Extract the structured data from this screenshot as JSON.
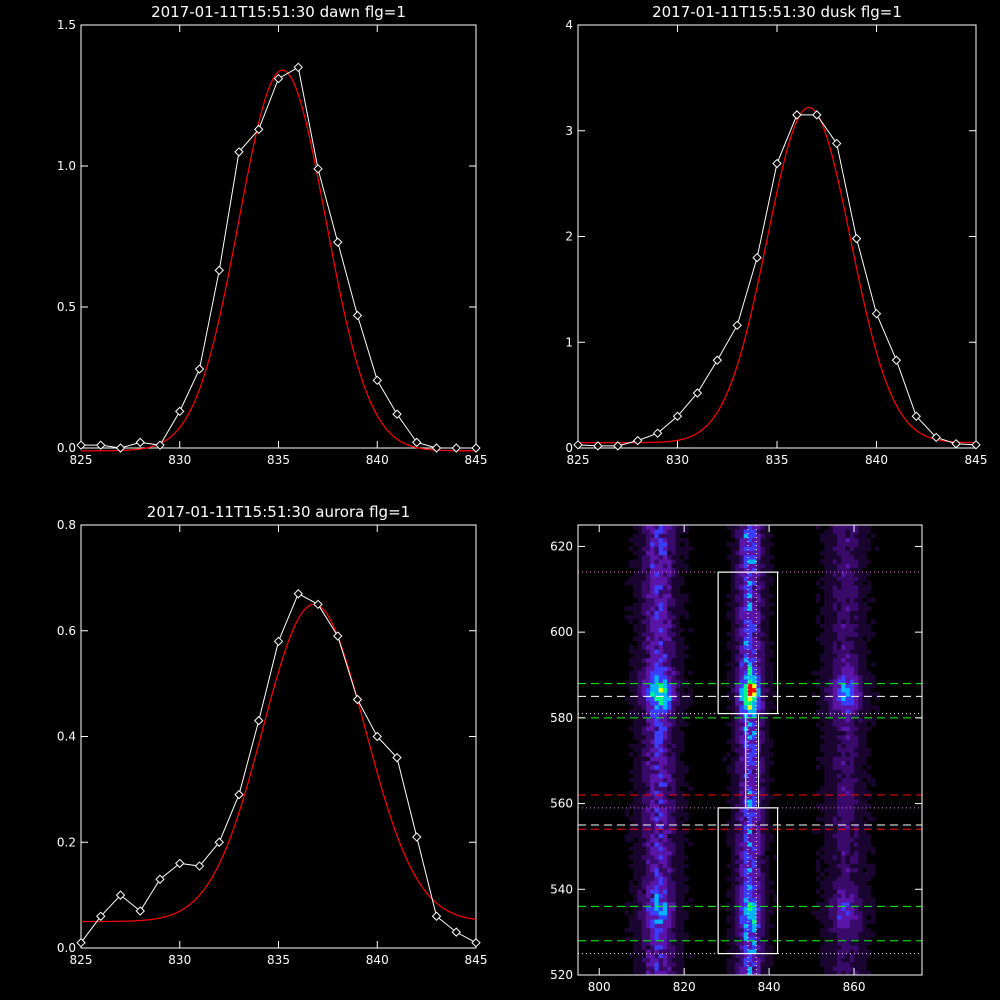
{
  "chart_data": [
    {
      "type": "line",
      "title": "2017-01-11T15:51:30 dawn flg=1",
      "xlim": [
        825,
        845
      ],
      "ylim": [
        0,
        1.5
      ],
      "xticks": [
        825,
        830,
        835,
        840,
        845
      ],
      "yticks": [
        0.0,
        0.5,
        1.0,
        1.5
      ],
      "xticklabels": [
        "825",
        "830",
        "835",
        "840",
        "845"
      ],
      "yticklabels": [
        "0.0",
        "0.5",
        "1.0",
        "1.5"
      ],
      "series": [
        {
          "role": "measured",
          "color": "#ffffff",
          "marker": "diamond",
          "x": [
            825,
            826,
            827,
            828,
            829,
            830,
            831,
            832,
            833,
            834,
            835,
            836,
            837,
            838,
            839,
            840,
            841,
            842,
            843,
            844,
            845
          ],
          "y": [
            0.01,
            0.01,
            0.0,
            0.02,
            0.01,
            0.13,
            0.28,
            0.63,
            1.05,
            1.13,
            1.31,
            1.35,
            0.99,
            0.73,
            0.47,
            0.24,
            0.12,
            0.02,
            0.0,
            0.0,
            0.0
          ]
        },
        {
          "role": "gaussian-fit",
          "color": "#ff0000",
          "amplitude": 1.35,
          "center": 835.2,
          "sigma": 2.2,
          "offset": -0.01
        }
      ]
    },
    {
      "type": "line",
      "title": "2017-01-11T15:51:30 dusk flg=1",
      "xlim": [
        825,
        845
      ],
      "ylim": [
        0,
        4
      ],
      "xticks": [
        825,
        830,
        835,
        840,
        845
      ],
      "yticks": [
        0,
        1,
        2,
        3,
        4
      ],
      "xticklabels": [
        "825",
        "830",
        "835",
        "840",
        "845"
      ],
      "yticklabels": [
        "0",
        "1",
        "2",
        "3",
        "4"
      ],
      "series": [
        {
          "role": "measured",
          "color": "#ffffff",
          "marker": "diamond",
          "x": [
            825,
            826,
            827,
            828,
            829,
            830,
            831,
            832,
            833,
            834,
            835,
            836,
            837,
            838,
            839,
            840,
            841,
            842,
            843,
            844,
            845
          ],
          "y": [
            0.03,
            0.02,
            0.02,
            0.07,
            0.14,
            0.3,
            0.52,
            0.83,
            1.16,
            1.8,
            2.69,
            3.15,
            3.15,
            2.88,
            1.98,
            1.27,
            0.83,
            0.3,
            0.1,
            0.04,
            0.03
          ]
        },
        {
          "role": "gaussian-fit",
          "color": "#ff0000",
          "amplitude": 3.17,
          "center": 836.6,
          "sigma": 2.1,
          "offset": 0.05
        }
      ]
    },
    {
      "type": "line",
      "title": "2017-01-11T15:51:30 aurora flg=1",
      "xlim": [
        825,
        845
      ],
      "ylim": [
        0,
        0.8
      ],
      "xticks": [
        825,
        830,
        835,
        840,
        845
      ],
      "yticks": [
        0.0,
        0.2,
        0.4,
        0.6,
        0.8
      ],
      "xticklabels": [
        "825",
        "830",
        "835",
        "840",
        "845"
      ],
      "yticklabels": [
        "0.0",
        "0.2",
        "0.4",
        "0.6",
        "0.8"
      ],
      "series": [
        {
          "role": "measured",
          "color": "#ffffff",
          "marker": "diamond",
          "x": [
            825,
            826,
            827,
            828,
            829,
            830,
            831,
            832,
            833,
            834,
            835,
            836,
            837,
            838,
            839,
            840,
            841,
            842,
            843,
            844,
            845
          ],
          "y": [
            0.01,
            0.06,
            0.1,
            0.07,
            0.13,
            0.16,
            0.155,
            0.2,
            0.29,
            0.43,
            0.58,
            0.67,
            0.65,
            0.59,
            0.47,
            0.4,
            0.36,
            0.21,
            0.06,
            0.03,
            0.01
          ]
        },
        {
          "role": "gaussian-fit",
          "color": "#ff0000",
          "amplitude": 0.6,
          "center": 836.8,
          "sigma": 2.6,
          "offset": 0.05
        }
      ]
    },
    {
      "type": "heatmap",
      "title": "",
      "xlim": [
        795,
        876
      ],
      "ylim": [
        520,
        625
      ],
      "xticks": [
        800,
        820,
        840,
        860
      ],
      "yticks": [
        520,
        540,
        560,
        580,
        600,
        620
      ],
      "xticklabels": [
        "800",
        "820",
        "840",
        "860"
      ],
      "yticklabels": [
        "520",
        "540",
        "560",
        "580",
        "600",
        "620"
      ],
      "colormap": [
        "#000000",
        "#1a0530",
        "#3a0a6a",
        "#5a14a8",
        "#3c3cff",
        "#00b4ff",
        "#00ff80",
        "#ffff00",
        "#ff0000",
        "#ffffff"
      ],
      "emission_columns": [
        {
          "center": 814,
          "width": 4,
          "strength": 0.35
        },
        {
          "center": 835.5,
          "width": 3,
          "strength": 0.45
        },
        {
          "center": 858,
          "width": 4,
          "strength": 0.22
        }
      ],
      "emission_bands": [
        {
          "center": 586,
          "height": 5,
          "strength": 0.6
        },
        {
          "center": 535,
          "height": 4,
          "strength": 0.35
        }
      ],
      "hot_spots": [
        {
          "x": 836,
          "y": 586,
          "level": 1.0
        },
        {
          "x": 814,
          "y": 586,
          "level": 0.65
        },
        {
          "x": 836,
          "y": 535,
          "level": 0.65
        },
        {
          "x": 814,
          "y": 535,
          "level": 0.45
        },
        {
          "x": 858,
          "y": 586,
          "level": 0.3
        }
      ],
      "boxes": [
        {
          "x": [
            828,
            842
          ],
          "y": [
            581,
            614
          ],
          "color": "#ffffff"
        },
        {
          "x": [
            828,
            842
          ],
          "y": [
            525,
            559
          ],
          "color": "#ffffff"
        }
      ],
      "column_connector": {
        "x": [
          834.5,
          837.5
        ],
        "y": [
          559,
          581
        ],
        "color": "#ffffff"
      },
      "hlines": [
        {
          "y": 588,
          "color": "#00ff00",
          "style": "dashed"
        },
        {
          "y": 585,
          "color": "#ffffff",
          "style": "dashed"
        },
        {
          "y": 580,
          "color": "#00ff00",
          "style": "dashed"
        },
        {
          "y": 562,
          "color": "#ff0000",
          "style": "dashed"
        },
        {
          "y": 555,
          "color": "#ffffff",
          "style": "dashed"
        },
        {
          "y": 554,
          "color": "#ff0000",
          "style": "dashed"
        },
        {
          "y": 536,
          "color": "#00ff00",
          "style": "dashed"
        },
        {
          "y": 528,
          "color": "#00ff00",
          "style": "dashed"
        },
        {
          "y": 614,
          "color": "#ff66ff",
          "style": "dotted"
        },
        {
          "y": 581,
          "color": "#ffffff",
          "style": "dotted"
        },
        {
          "y": 559,
          "color": "#ff66ff",
          "style": "dotted"
        },
        {
          "y": 525,
          "color": "#ffffff",
          "style": "dotted"
        }
      ],
      "vlines": [
        {
          "x": 835,
          "color": "#ffffff",
          "style": "dotted"
        },
        {
          "x": 837,
          "color": "#ffffff",
          "style": "dotted"
        }
      ]
    }
  ]
}
